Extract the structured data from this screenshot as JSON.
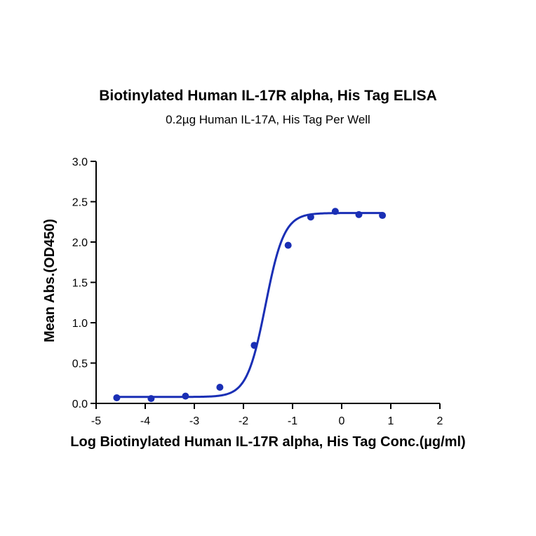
{
  "chart_data": {
    "type": "scatter",
    "title": "Biotinylated Human IL-17R alpha, His Tag ELISA",
    "subtitle": "0.2µg Human IL-17A, His Tag Per Well",
    "xlabel": "Log Biotinylated Human IL-17R alpha, His Tag Conc.(µg/ml)",
    "ylabel": "Mean Abs.(OD450)",
    "xlim": [
      -5,
      2
    ],
    "ylim": [
      0,
      3.0
    ],
    "x_ticks": [
      "-5",
      "-4",
      "-3",
      "-2",
      "-1",
      "0",
      "1",
      "2"
    ],
    "y_ticks": [
      "0.0",
      "0.5",
      "1.0",
      "1.5",
      "2.0",
      "2.5",
      "3.0"
    ],
    "grid": false,
    "colors": {
      "series": "#1a2fb5",
      "axis": "#000000"
    },
    "points": {
      "x": [
        -4.58,
        -3.88,
        -3.18,
        -2.48,
        -1.78,
        -1.09,
        -0.63,
        -0.13,
        0.35,
        0.83
      ],
      "y": [
        0.07,
        0.06,
        0.09,
        0.2,
        0.72,
        1.96,
        2.31,
        2.38,
        2.34,
        2.33
      ]
    },
    "fit": {
      "model": "4PL",
      "bottom": 0.08,
      "top": 2.36,
      "log_ec50": -1.55,
      "hill": 2.3,
      "x_range": [
        -4.58,
        0.83
      ]
    }
  }
}
